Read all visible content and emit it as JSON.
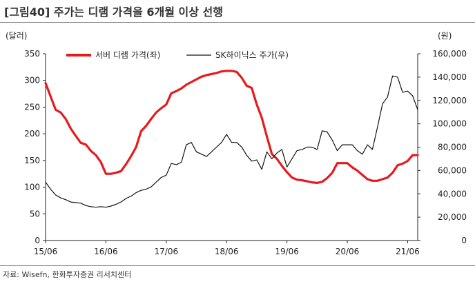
{
  "title": "[그림40]  주가는 디램 가격을 6개월 이상 선행",
  "source": "자료: Wisefn, 한화투자증권 리서치센터",
  "chart_data": {
    "type": "line",
    "left_unit": "(달러)",
    "right_unit": "(원)",
    "x_tick_labels": [
      "15/06",
      "16/06",
      "17/06",
      "18/06",
      "19/06",
      "20/06",
      "21/06"
    ],
    "y_left": {
      "min": 0,
      "max": 350,
      "ticks": [
        "0",
        "50",
        "100",
        "150",
        "200",
        "250",
        "300",
        "350"
      ]
    },
    "y_right": {
      "min": 0,
      "max": 160000,
      "ticks": [
        "0",
        "20,000",
        "40,000",
        "60,000",
        "80,000",
        "100,000",
        "120,000",
        "140,000",
        "160,000"
      ]
    },
    "series": [
      {
        "name": "서버 디램 가격(좌)",
        "axis": "left",
        "color": "#e8191c",
        "values": [
          [
            0,
            295
          ],
          [
            1,
            270
          ],
          [
            2,
            245
          ],
          [
            3,
            240
          ],
          [
            4,
            228
          ],
          [
            5,
            210
          ],
          [
            6,
            196
          ],
          [
            7,
            183
          ],
          [
            8,
            180
          ],
          [
            9,
            168
          ],
          [
            10,
            160
          ],
          [
            11,
            147
          ],
          [
            12,
            125
          ],
          [
            13,
            125
          ],
          [
            14,
            127
          ],
          [
            15,
            130
          ],
          [
            16,
            143
          ],
          [
            17,
            158
          ],
          [
            18,
            175
          ],
          [
            19,
            205
          ],
          [
            20,
            215
          ],
          [
            21,
            228
          ],
          [
            22,
            240
          ],
          [
            23,
            248
          ],
          [
            24,
            255
          ],
          [
            25,
            276
          ],
          [
            26,
            280
          ],
          [
            27,
            285
          ],
          [
            28,
            292
          ],
          [
            29,
            297
          ],
          [
            30,
            302
          ],
          [
            31,
            307
          ],
          [
            32,
            310
          ],
          [
            33,
            312
          ],
          [
            34,
            314
          ],
          [
            35,
            317
          ],
          [
            36,
            318
          ],
          [
            37,
            318
          ],
          [
            38,
            316
          ],
          [
            39,
            305
          ],
          [
            40,
            290
          ],
          [
            41,
            286
          ],
          [
            42,
            255
          ],
          [
            43,
            230
          ],
          [
            44,
            195
          ],
          [
            45,
            162
          ],
          [
            46,
            153
          ],
          [
            47,
            140
          ],
          [
            48,
            128
          ],
          [
            49,
            118
          ],
          [
            50,
            114
          ],
          [
            51,
            113
          ],
          [
            52,
            111
          ],
          [
            53,
            109
          ],
          [
            54,
            108
          ],
          [
            55,
            110
          ],
          [
            56,
            117
          ],
          [
            57,
            127
          ],
          [
            58,
            145
          ],
          [
            59,
            145
          ],
          [
            60,
            145
          ],
          [
            61,
            137
          ],
          [
            62,
            131
          ],
          [
            63,
            123
          ],
          [
            64,
            115
          ],
          [
            65,
            112
          ],
          [
            66,
            112
          ],
          [
            67,
            115
          ],
          [
            68,
            118
          ],
          [
            69,
            127
          ],
          [
            70,
            141
          ],
          [
            71,
            144
          ],
          [
            72,
            149
          ],
          [
            73,
            160
          ],
          [
            74,
            160
          ]
        ]
      },
      {
        "name": "SK하이닉스 주가(우)",
        "axis": "right",
        "color": "#111111",
        "values": [
          [
            0,
            50000
          ],
          [
            1,
            44000
          ],
          [
            2,
            39000
          ],
          [
            3,
            36500
          ],
          [
            4,
            35000
          ],
          [
            5,
            33000
          ],
          [
            6,
            32500
          ],
          [
            7,
            32000
          ],
          [
            8,
            30000
          ],
          [
            9,
            29000
          ],
          [
            10,
            28500
          ],
          [
            11,
            29000
          ],
          [
            12,
            28500
          ],
          [
            13,
            29500
          ],
          [
            14,
            31000
          ],
          [
            15,
            33000
          ],
          [
            16,
            36000
          ],
          [
            17,
            38000
          ],
          [
            18,
            41000
          ],
          [
            19,
            43000
          ],
          [
            20,
            44000
          ],
          [
            21,
            46000
          ],
          [
            22,
            50000
          ],
          [
            23,
            54000
          ],
          [
            24,
            56000
          ],
          [
            25,
            66000
          ],
          [
            26,
            65000
          ],
          [
            27,
            67000
          ],
          [
            28,
            82000
          ],
          [
            29,
            84000
          ],
          [
            30,
            76000
          ],
          [
            31,
            74000
          ],
          [
            32,
            72000
          ],
          [
            33,
            76000
          ],
          [
            34,
            80000
          ],
          [
            35,
            84000
          ],
          [
            36,
            91000
          ],
          [
            37,
            84000
          ],
          [
            38,
            84000
          ],
          [
            39,
            80000
          ],
          [
            40,
            73000
          ],
          [
            41,
            68000
          ],
          [
            42,
            69000
          ],
          [
            43,
            61000
          ],
          [
            44,
            76000
          ],
          [
            45,
            70000
          ],
          [
            46,
            75000
          ],
          [
            47,
            78000
          ],
          [
            48,
            63000
          ],
          [
            49,
            70000
          ],
          [
            50,
            77000
          ],
          [
            51,
            78000
          ],
          [
            52,
            80000
          ],
          [
            53,
            80000
          ],
          [
            54,
            78000
          ],
          [
            55,
            94000
          ],
          [
            56,
            93000
          ],
          [
            57,
            86000
          ],
          [
            58,
            77000
          ],
          [
            59,
            82000
          ],
          [
            60,
            82000
          ],
          [
            61,
            82000
          ],
          [
            62,
            77000
          ],
          [
            63,
            74000
          ],
          [
            64,
            82000
          ],
          [
            65,
            78000
          ],
          [
            66,
            97000
          ],
          [
            67,
            117000
          ],
          [
            68,
            123000
          ],
          [
            69,
            141000
          ],
          [
            70,
            140000
          ],
          [
            71,
            127000
          ],
          [
            72,
            128000
          ],
          [
            73,
            124000
          ],
          [
            74,
            112000
          ]
        ]
      }
    ],
    "x_tick_positions": [
      0,
      12,
      24,
      36,
      48,
      60,
      72
    ],
    "x_range": [
      0,
      74
    ],
    "legend_position": "top",
    "grid": false
  }
}
